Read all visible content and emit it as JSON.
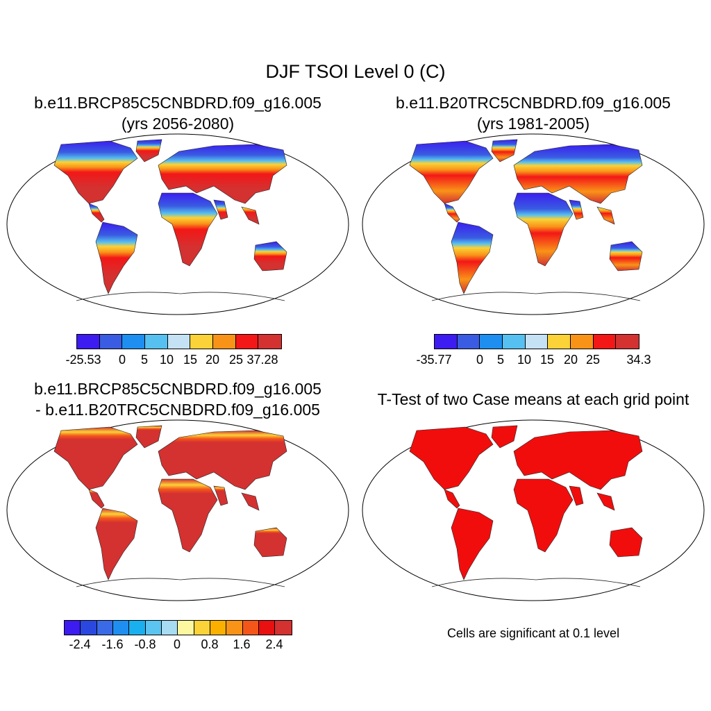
{
  "title": "DJF TSOI Level 0 (C)",
  "panels": [
    {
      "title_line1": "b.e11.BRCP85C5CNBDRD.f09_g16.005",
      "title_line2": "(yrs 2056-2080)"
    },
    {
      "title_line1": "b.e11.B20TRC5CNBDRD.f09_g16.005",
      "title_line2": "(yrs 1981-2005)"
    },
    {
      "title_line1": "b.e11.BRCP85C5CNBDRD.f09_g16.005",
      "title_line2": "- b.e11.B20TRC5CNBDRD.f09_g16.005"
    },
    {
      "title_line1": "T-Test of two Case means at each grid point"
    }
  ],
  "colorbars": [
    {
      "colors": [
        "#3c1cf0",
        "#3a5ce2",
        "#1e8ff0",
        "#56c0f0",
        "#c4e2f4",
        "#fbd237",
        "#f99318",
        "#f31717",
        "#d43131"
      ],
      "labels": [
        "-25.53",
        "0",
        "5",
        "10",
        "15",
        "20",
        "25",
        "37.28"
      ]
    },
    {
      "colors": [
        "#3c1cf0",
        "#3a5ce2",
        "#1e8ff0",
        "#56c0f0",
        "#c4e2f4",
        "#fbd237",
        "#f99318",
        "#f31717",
        "#d43131"
      ],
      "labels": [
        "-35.77",
        "0",
        "5",
        "10",
        "15",
        "20",
        "25",
        "34.3"
      ]
    },
    {
      "colors": [
        "#3c1cf0",
        "#2a48e0",
        "#3a6ae6",
        "#1e8ff0",
        "#1ab0f0",
        "#5cc4f0",
        "#a8dcf2",
        "#fdf8a0",
        "#fbd237",
        "#fbb000",
        "#f99318",
        "#f4561a",
        "#e81010",
        "#d43131"
      ],
      "labels": [
        "-2.4",
        "-1.6",
        "-0.8",
        "0",
        "0.8",
        "1.6",
        "2.4"
      ]
    }
  ],
  "note": "Cells are significant at 0.1 level"
}
